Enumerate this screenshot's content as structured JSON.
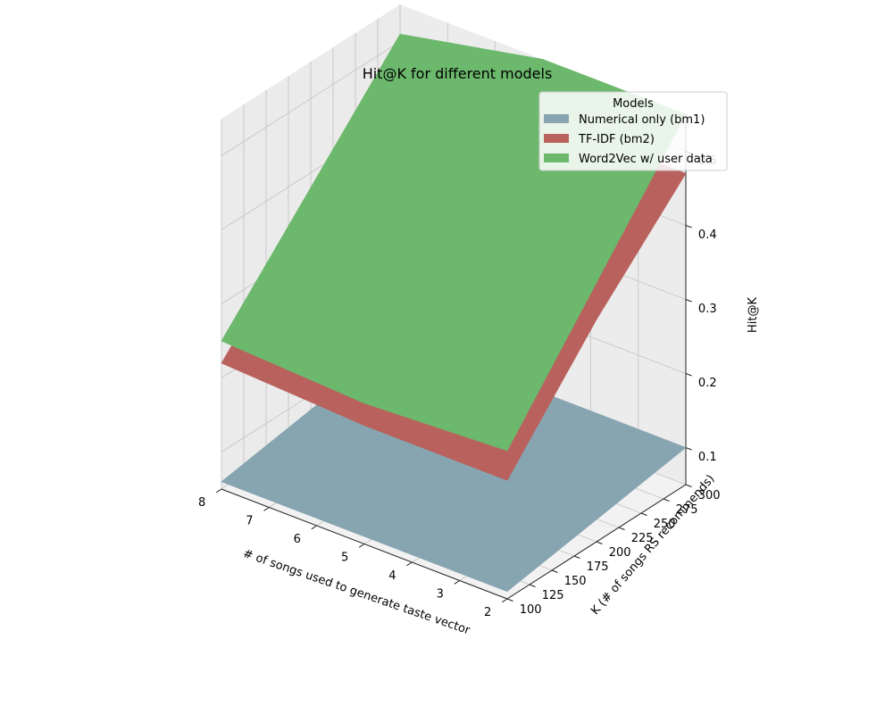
{
  "chart_data": {
    "type": "surface3d",
    "title": "Hit@K for different models",
    "xlabel": "# of songs used to generate taste vector",
    "ylabel": "K (# of songs RS recommends)",
    "zlabel": "Hit@K",
    "x": [
      2,
      5,
      8
    ],
    "y": [
      100,
      200,
      300
    ],
    "x_ticks": [
      2,
      3,
      4,
      5,
      6,
      7,
      8
    ],
    "y_ticks": [
      100,
      125,
      150,
      175,
      200,
      225,
      250,
      275,
      300
    ],
    "z_ticks": [
      0.1,
      0.2,
      0.3,
      0.4,
      0.5
    ],
    "xlim": [
      2,
      8
    ],
    "ylim": [
      100,
      300
    ],
    "zlim": [
      0.05,
      0.55
    ],
    "grid": true,
    "legend": {
      "title": "Models",
      "placement": "top-right"
    },
    "series": [
      {
        "name": "Numerical only (bm1)",
        "color": "#87a5b1",
        "z": [
          [
            0.06,
            0.08,
            0.1
          ],
          [
            0.06,
            0.08,
            0.1
          ],
          [
            0.06,
            0.08,
            0.1
          ]
        ]
      },
      {
        "name": "TF-IDF (bm2)",
        "color": "#b9615d",
        "z": [
          [
            0.21,
            0.35,
            0.47
          ],
          [
            0.21,
            0.34,
            0.47
          ],
          [
            0.22,
            0.35,
            0.47
          ]
        ]
      },
      {
        "name": "Word2Vec w/ user data",
        "color": "#6cb86c",
        "z": [
          [
            0.25,
            0.4,
            0.55
          ],
          [
            0.24,
            0.4,
            0.55
          ],
          [
            0.25,
            0.38,
            0.51
          ]
        ]
      }
    ]
  }
}
